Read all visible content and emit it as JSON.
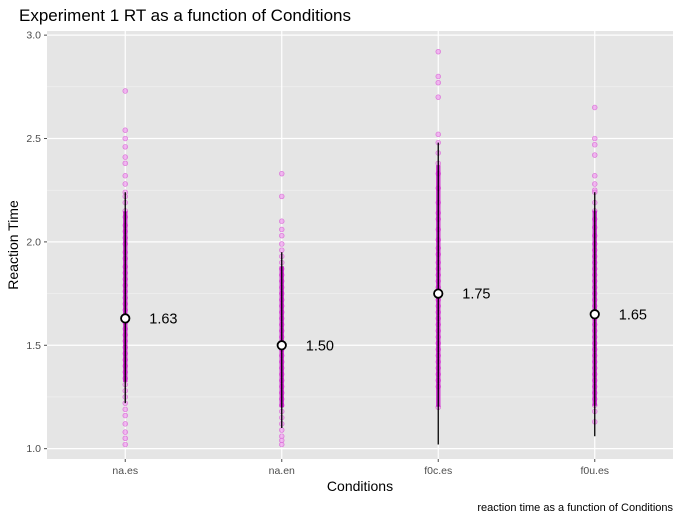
{
  "chart_data": {
    "type": "scatter",
    "title": "Experiment 1 RT as a function of Conditions",
    "xlabel": "Conditions",
    "ylabel": "Reaction Time",
    "caption": "reaction time as a function of Conditions",
    "categories": [
      "na.es",
      "na.en",
      "f0c.es",
      "f0u.es"
    ],
    "ylim": [
      0.95,
      3.02
    ],
    "yticks": [
      "1.0",
      "1.5",
      "2.0",
      "2.5",
      "3.0"
    ],
    "grid": true,
    "point_color": "#ee82ee",
    "point_stroke": "#da70d6",
    "dense_color": "#cc00cc",
    "errorbar_color": "#000000",
    "panel_background": "#e5e5e5",
    "means": [
      1.63,
      1.5,
      1.75,
      1.65
    ],
    "mean_labels": [
      "1.63",
      "1.50",
      "1.75",
      "1.65"
    ],
    "error_bars": [
      {
        "low": 1.22,
        "high": 2.24
      },
      {
        "low": 1.1,
        "high": 1.95
      },
      {
        "low": 1.02,
        "high": 2.48
      },
      {
        "low": 1.06,
        "high": 2.24
      }
    ],
    "points": [
      [
        2.73,
        2.54,
        2.5,
        2.46,
        2.41,
        2.38,
        2.32,
        2.28,
        2.24,
        2.22,
        2.19,
        2.15,
        2.12,
        2.08,
        2.05,
        2.02,
        1.99,
        1.95,
        1.92,
        1.88,
        1.85,
        1.82,
        1.79,
        1.76,
        1.73,
        1.7,
        1.67,
        1.64,
        1.61,
        1.58,
        1.55,
        1.52,
        1.49,
        1.46,
        1.43,
        1.4,
        1.37,
        1.34,
        1.31,
        1.28,
        1.25,
        1.22,
        1.19,
        1.16,
        1.12,
        1.08,
        1.05,
        1.02
      ],
      [
        2.33,
        2.22,
        2.1,
        2.06,
        2.03,
        1.99,
        1.96,
        1.93,
        1.9,
        1.87,
        1.84,
        1.81,
        1.78,
        1.75,
        1.72,
        1.69,
        1.66,
        1.63,
        1.6,
        1.57,
        1.54,
        1.51,
        1.48,
        1.45,
        1.42,
        1.39,
        1.36,
        1.33,
        1.3,
        1.27,
        1.24,
        1.21,
        1.18,
        1.15,
        1.12,
        1.09,
        1.06,
        1.04,
        1.02
      ],
      [
        2.92,
        2.8,
        2.77,
        2.7,
        2.52,
        2.48,
        2.43,
        2.38,
        2.33,
        2.26,
        2.19,
        2.14,
        2.11,
        2.06,
        2.01,
        1.97,
        1.94,
        1.9,
        1.87,
        1.84,
        1.81,
        1.78,
        1.75,
        1.72,
        1.69,
        1.66,
        1.63,
        1.6,
        1.57,
        1.54,
        1.51,
        1.48,
        1.45,
        1.42,
        1.39,
        1.36,
        1.33,
        1.3,
        1.2
      ],
      [
        2.65,
        2.5,
        2.47,
        2.42,
        2.32,
        2.28,
        2.25,
        2.24,
        2.19,
        2.15,
        2.11,
        2.07,
        2.03,
        1.99,
        1.96,
        1.93,
        1.9,
        1.87,
        1.84,
        1.81,
        1.78,
        1.75,
        1.72,
        1.69,
        1.66,
        1.63,
        1.6,
        1.57,
        1.54,
        1.51,
        1.48,
        1.45,
        1.42,
        1.39,
        1.36,
        1.33,
        1.3,
        1.27,
        1.24,
        1.21,
        1.18,
        1.13
      ]
    ]
  }
}
